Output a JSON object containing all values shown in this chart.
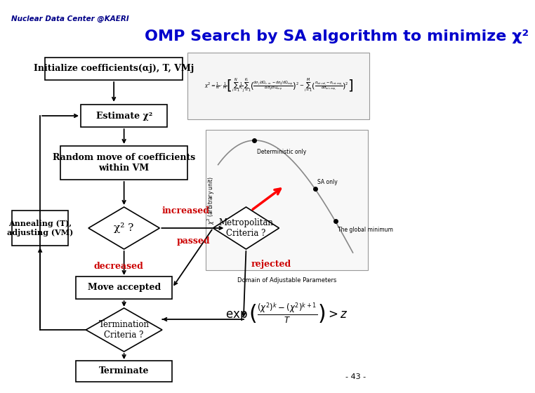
{
  "title": "OMP Search by SA algorithm to minimize χ²",
  "header": "Nuclear Data Center @KAERI",
  "background_color": "#ffffff",
  "title_color": "#0000cc",
  "header_color": "#000088",
  "red_label_color": "#cc0000",
  "page_number": "- 43 -",
  "arrow_color": "#000000"
}
